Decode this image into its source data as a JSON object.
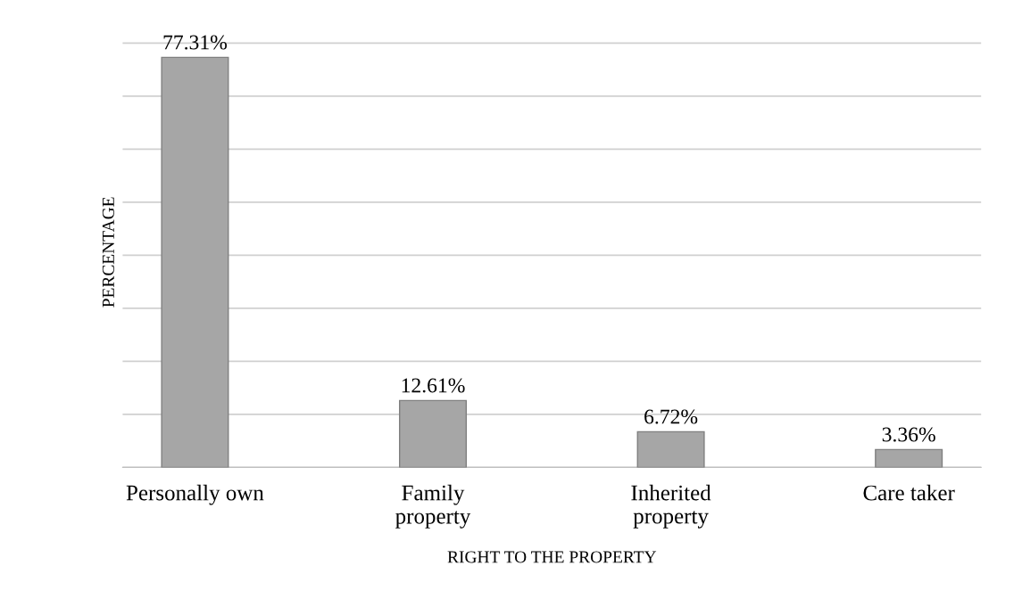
{
  "chart_data": {
    "type": "bar",
    "categories": [
      "Personally own",
      "Family\nproperty",
      "Inherited\nproperty",
      "Care taker"
    ],
    "values": [
      77.31,
      12.61,
      6.72,
      3.36
    ],
    "value_labels": [
      "77.31%",
      "12.61%",
      "6.72%",
      "3.36%"
    ],
    "color": "#a6a6a6",
    "xlabel": "RIGHT TO THE PROPERTY",
    "ylabel": "PERCENTAGE",
    "grid": "y",
    "tick_labels": "x"
  }
}
